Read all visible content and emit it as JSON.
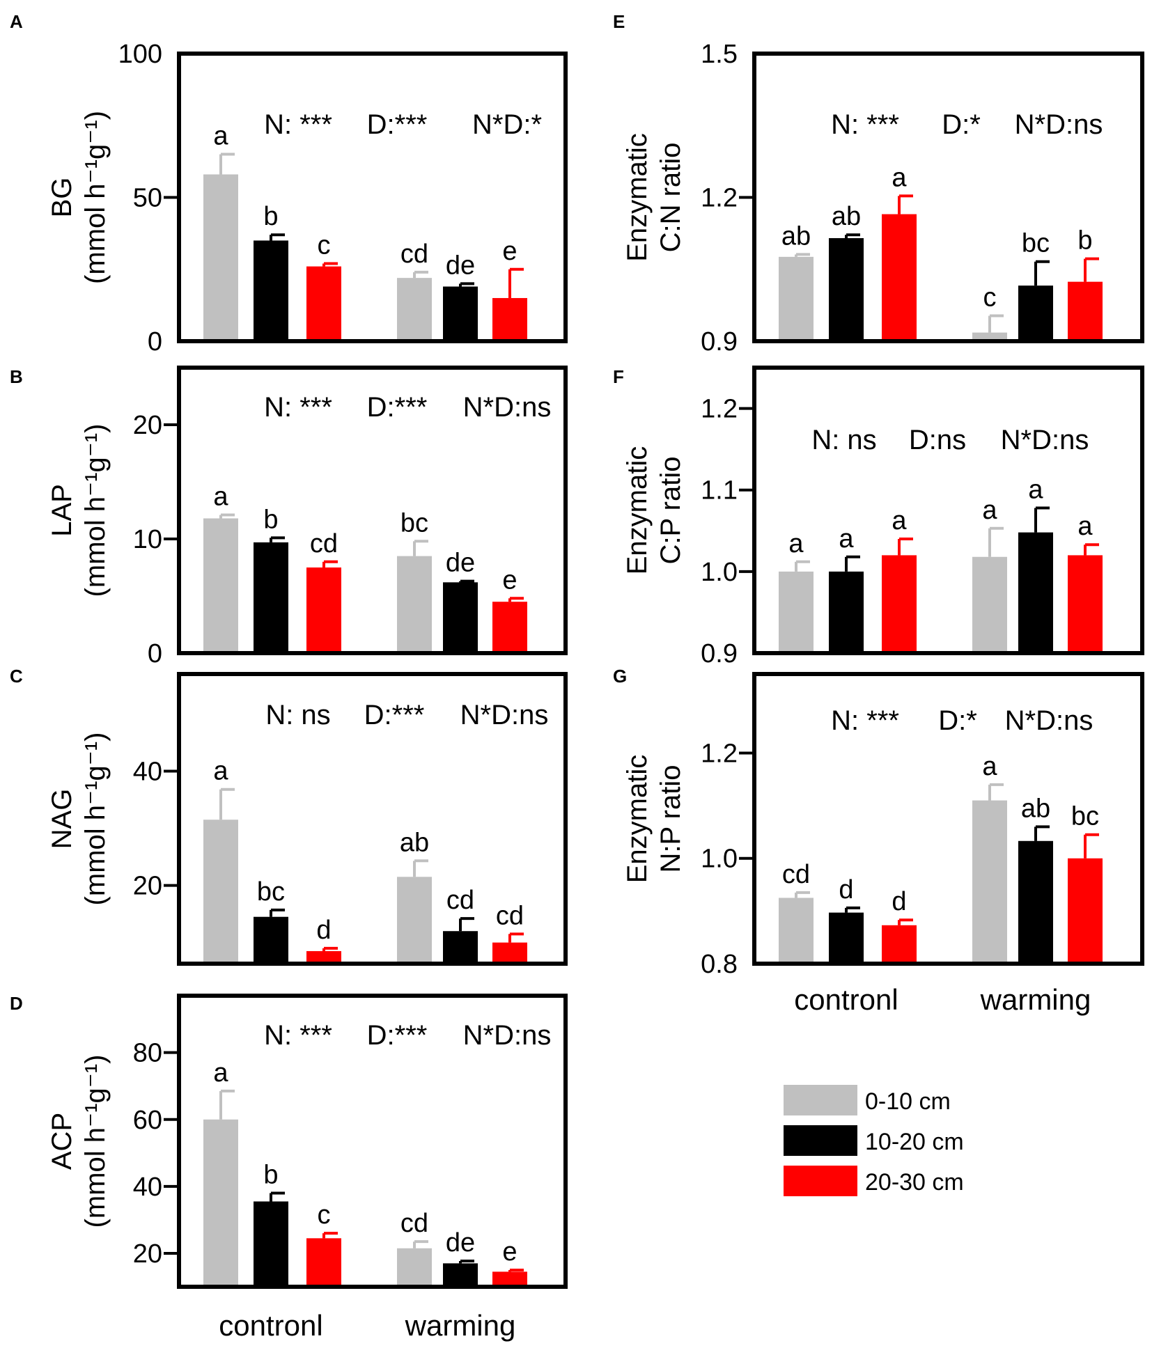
{
  "chart_data": [
    {
      "panel": "A",
      "type": "bar",
      "ylabel_main": "BG",
      "ylabel_unit": "(mmol h⁻¹g⁻¹)",
      "ylim": [
        0,
        100
      ],
      "yticks": [
        0,
        50,
        100
      ],
      "stats": [
        "N: ***",
        "D:***",
        "N*D:*"
      ],
      "categories": [
        "contronl",
        "warming"
      ],
      "series": [
        {
          "name": "0-10 cm",
          "values": [
            58,
            22
          ],
          "errors": [
            7,
            2
          ],
          "letters": [
            "a",
            "cd"
          ]
        },
        {
          "name": "10-20 cm",
          "values": [
            35,
            19
          ],
          "errors": [
            2,
            1
          ],
          "letters": [
            "b",
            "de"
          ]
        },
        {
          "name": "20-30 cm",
          "values": [
            26,
            15
          ],
          "errors": [
            1,
            10
          ],
          "letters": [
            "c",
            "e"
          ]
        }
      ]
    },
    {
      "panel": "B",
      "type": "bar",
      "ylabel_main": "LAP",
      "ylabel_unit": "(mmol h⁻¹g⁻¹)",
      "ylim": [
        0,
        25
      ],
      "yticks": [
        0,
        10,
        20
      ],
      "stats": [
        "N: ***",
        "D:***",
        "N*D:ns"
      ],
      "categories": [
        "contronl",
        "warming"
      ],
      "series": [
        {
          "name": "0-10 cm",
          "values": [
            11.8,
            8.5
          ],
          "errors": [
            0.3,
            1.3
          ],
          "letters": [
            "a",
            "bc"
          ]
        },
        {
          "name": "10-20 cm",
          "values": [
            9.7,
            6.2
          ],
          "errors": [
            0.4,
            0.1
          ],
          "letters": [
            "b",
            "de"
          ]
        },
        {
          "name": "20-30 cm",
          "values": [
            7.5,
            4.5
          ],
          "errors": [
            0.5,
            0.3
          ],
          "letters": [
            "cd",
            "e"
          ]
        }
      ]
    },
    {
      "panel": "C",
      "type": "bar",
      "ylabel_main": "NAG",
      "ylabel_unit": "(mmol h⁻¹g⁻¹)",
      "ylim": [
        6.3,
        57
      ],
      "yticks": [
        20,
        40
      ],
      "stats": [
        "N: ns",
        "D:***",
        "N*D:ns"
      ],
      "categories": [
        "contronl",
        "warming"
      ],
      "series": [
        {
          "name": "0-10 cm",
          "values": [
            31.5,
            21.5
          ],
          "errors": [
            5.3,
            2.8
          ],
          "letters": [
            "a",
            "ab"
          ]
        },
        {
          "name": "10-20 cm",
          "values": [
            14.5,
            12
          ],
          "errors": [
            1.2,
            2.2
          ],
          "letters": [
            "bc",
            "cd"
          ]
        },
        {
          "name": "20-30 cm",
          "values": [
            8.5,
            10
          ],
          "errors": [
            0.5,
            1.5
          ],
          "letters": [
            "d",
            "cd"
          ]
        }
      ]
    },
    {
      "panel": "D",
      "type": "bar",
      "ylabel_main": "ACP",
      "ylabel_unit": "(mmol h⁻¹g⁻¹)",
      "ylim": [
        10,
        97
      ],
      "yticks": [
        20,
        40,
        60,
        80
      ],
      "stats": [
        "N: ***",
        "D:***",
        "N*D:ns"
      ],
      "categories": [
        "contronl",
        "warming"
      ],
      "series": [
        {
          "name": "0-10 cm",
          "values": [
            60,
            21.5
          ],
          "errors": [
            8.5,
            2
          ],
          "letters": [
            "a",
            "cd"
          ]
        },
        {
          "name": "10-20 cm",
          "values": [
            35.5,
            17
          ],
          "errors": [
            2.5,
            0.7
          ],
          "letters": [
            "b",
            "de"
          ]
        },
        {
          "name": "20-30 cm",
          "values": [
            24.5,
            14.5
          ],
          "errors": [
            1.5,
            0.5
          ],
          "letters": [
            "c",
            "e"
          ]
        }
      ]
    },
    {
      "panel": "E",
      "type": "bar",
      "ylabel_main": "Enzymatic",
      "ylabel_unit": "C:N ratio",
      "ylim": [
        0.9,
        1.5
      ],
      "yticks": [
        0.9,
        1.2,
        1.5
      ],
      "stats": [
        "N: ***",
        "D:*",
        "N*D:ns"
      ],
      "categories": [
        "contronl",
        "warming"
      ],
      "series": [
        {
          "name": "0-10 cm",
          "values": [
            1.076,
            0.918
          ],
          "errors": [
            0.005,
            0.035
          ],
          "letters": [
            "ab",
            "c"
          ]
        },
        {
          "name": "10-20 cm",
          "values": [
            1.115,
            1.016
          ],
          "errors": [
            0.007,
            0.05
          ],
          "letters": [
            "ab",
            "bc"
          ]
        },
        {
          "name": "20-30 cm",
          "values": [
            1.165,
            1.024
          ],
          "errors": [
            0.038,
            0.048
          ],
          "letters": [
            "a",
            "b"
          ]
        }
      ]
    },
    {
      "panel": "F",
      "type": "bar",
      "ylabel_main": "Enzymatic",
      "ylabel_unit": "C:P ratio",
      "ylim": [
        0.9,
        1.25
      ],
      "yticks": [
        0.9,
        1.0,
        1.1,
        1.2
      ],
      "stats": [
        "N: ns",
        "D:ns",
        "N*D:ns"
      ],
      "categories": [
        "contronl",
        "warming"
      ],
      "series": [
        {
          "name": "0-10 cm",
          "values": [
            1.0,
            1.018
          ],
          "errors": [
            0.012,
            0.035
          ],
          "letters": [
            "a",
            "a"
          ]
        },
        {
          "name": "10-20 cm",
          "values": [
            1.0,
            1.048
          ],
          "errors": [
            0.018,
            0.03
          ],
          "letters": [
            "a",
            "a"
          ]
        },
        {
          "name": "20-30 cm",
          "values": [
            1.02,
            1.02
          ],
          "errors": [
            0.02,
            0.013
          ],
          "letters": [
            "a",
            "a"
          ]
        }
      ]
    },
    {
      "panel": "G",
      "type": "bar",
      "ylabel_main": "Enzymatic",
      "ylabel_unit": "N:P ratio",
      "ylim": [
        0.8,
        1.35
      ],
      "yticks": [
        0.8,
        1.0,
        1.2
      ],
      "stats": [
        "N: ***",
        "D:*",
        "N*D:ns"
      ],
      "categories": [
        "contronl",
        "warming"
      ],
      "series": [
        {
          "name": "0-10 cm",
          "values": [
            0.925,
            1.11
          ],
          "errors": [
            0.01,
            0.03
          ],
          "letters": [
            "cd",
            "a"
          ]
        },
        {
          "name": "10-20 cm",
          "values": [
            0.897,
            1.033
          ],
          "errors": [
            0.009,
            0.027
          ],
          "letters": [
            "d",
            "ab"
          ]
        },
        {
          "name": "20-30 cm",
          "values": [
            0.873,
            1.0
          ],
          "errors": [
            0.01,
            0.045
          ],
          "letters": [
            "d",
            "bc"
          ]
        }
      ]
    }
  ],
  "legend": [
    {
      "label": "0-10 cm",
      "color": "#c0c0c0"
    },
    {
      "label": "10-20 cm",
      "color": "#000000"
    },
    {
      "label": "20-30 cm",
      "color": "#ff0000"
    }
  ]
}
